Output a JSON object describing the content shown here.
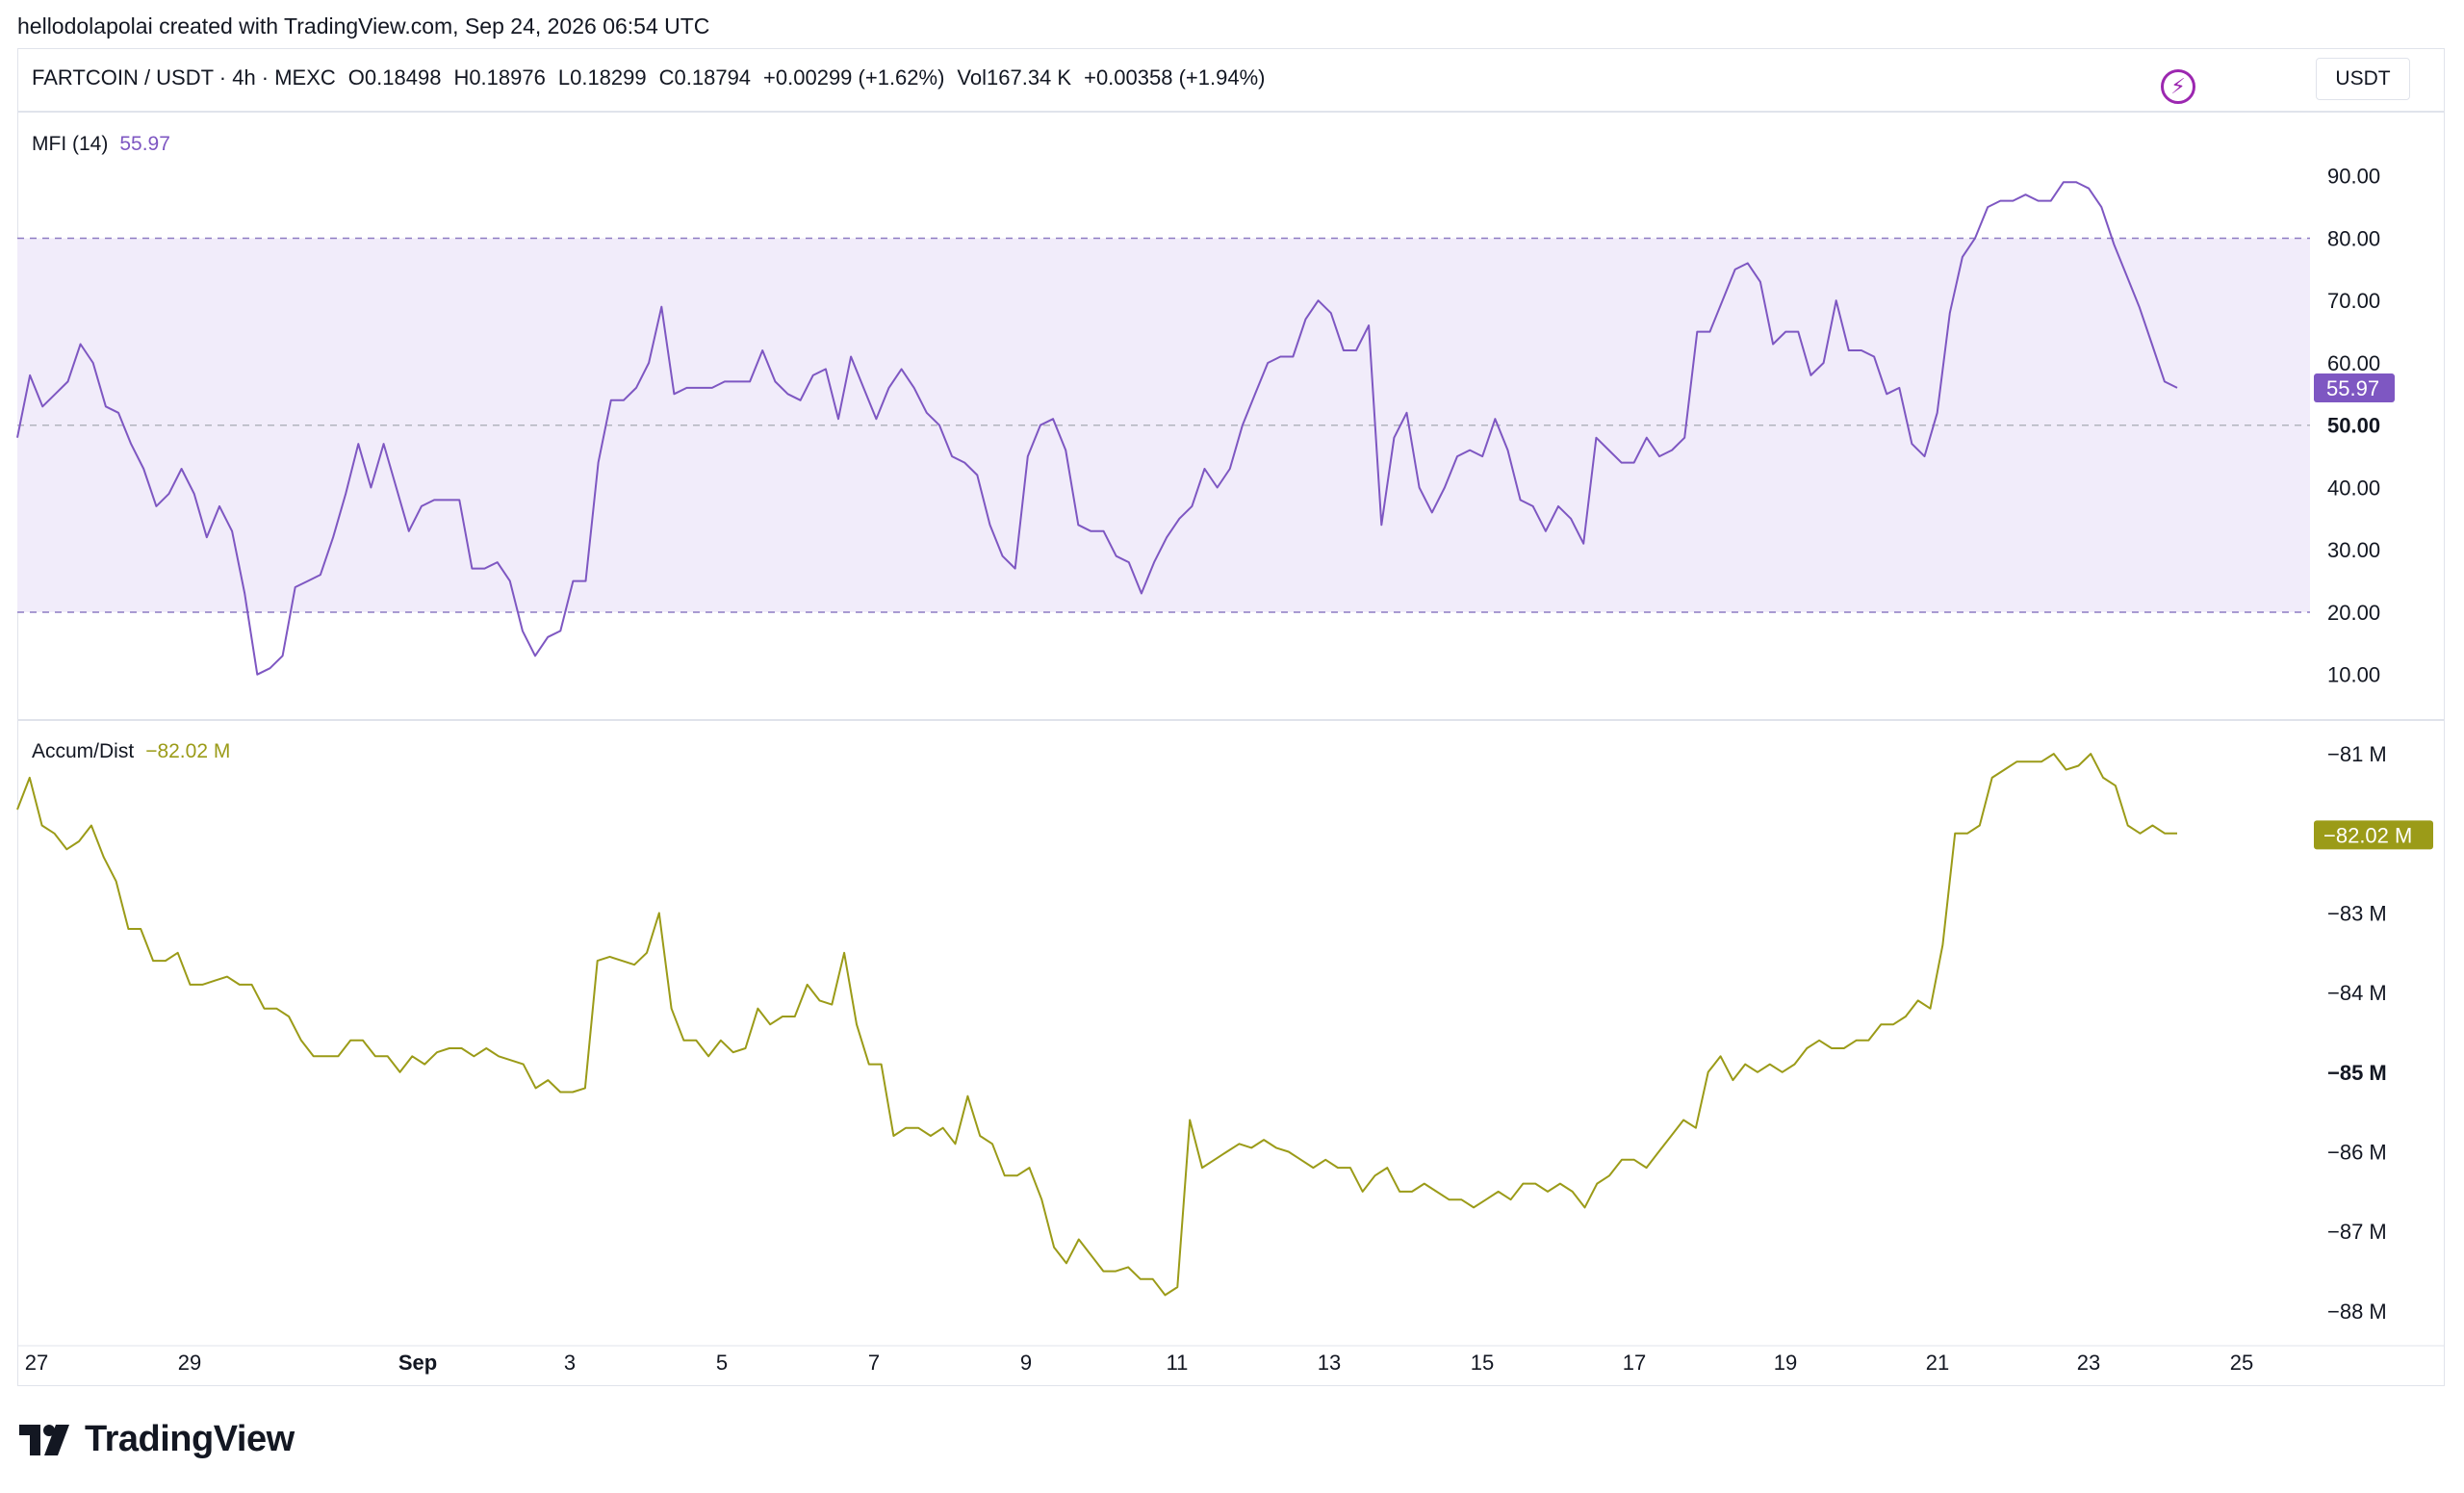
{
  "credit": "hellodolapolai created with TradingView.com, Sep 24, 2026 06:54 UTC",
  "header": {
    "symbol": "FARTCOIN / USDT · 4h · MEXC",
    "open": "O0.18498",
    "high": "H0.18976",
    "low": "L0.18299",
    "close": "C0.18794",
    "change": "+0.00299 (+1.62%)",
    "volume": "Vol167.34 K",
    "vol_change": "+0.00358 (+1.94%)"
  },
  "currency_button": "USDT",
  "icons": {
    "lightning": "lightning-icon",
    "logo": "tradingview-logo-icon"
  },
  "colors": {
    "mfi": "#7e57c2",
    "ad": "#9b9b18",
    "band_fill": "#f1ecfa",
    "grid": "#e0e3eb"
  },
  "logo_text": "TradingView",
  "chart_data": [
    {
      "type": "line",
      "name": "MFI (14)",
      "current_label": "55.97",
      "color": "#7e57c2",
      "ylim": [
        3,
        100
      ],
      "yticks": [
        "90.00",
        "80.00",
        "70.00",
        "60.00",
        "50.00",
        "40.00",
        "30.00",
        "20.00",
        "10.00"
      ],
      "ytick_values": [
        90,
        80,
        70,
        60,
        50,
        40,
        30,
        20,
        10
      ],
      "bold_tick": "50.00",
      "bands": {
        "upper": 80,
        "middle": 50,
        "lower": 20
      },
      "last_value": 55.97,
      "values": [
        48,
        58,
        53,
        55,
        57,
        63,
        60,
        53,
        52,
        47,
        43,
        37,
        39,
        43,
        39,
        32,
        37,
        33,
        23,
        10,
        11,
        13,
        24,
        25,
        26,
        32,
        39,
        47,
        40,
        47,
        40,
        33,
        37,
        38,
        38,
        38,
        27,
        27,
        28,
        25,
        17,
        13,
        16,
        17,
        25,
        25,
        44,
        54,
        54,
        56,
        60,
        69,
        55,
        56,
        56,
        56,
        57,
        57,
        57,
        62,
        57,
        55,
        54,
        58,
        59,
        51,
        61,
        56,
        51,
        56,
        59,
        56,
        52,
        50,
        45,
        44,
        42,
        34,
        29,
        27,
        45,
        50,
        51,
        46,
        34,
        33,
        33,
        29,
        28,
        23,
        28,
        32,
        35,
        37,
        43,
        40,
        43,
        50,
        55,
        60,
        61,
        61,
        67,
        70,
        68,
        62,
        62,
        66,
        34,
        48,
        52,
        40,
        36,
        40,
        45,
        46,
        45,
        51,
        46,
        38,
        37,
        33,
        37,
        35,
        31,
        48,
        46,
        44,
        44,
        48,
        45,
        46,
        48,
        65,
        65,
        70,
        75,
        76,
        73,
        63,
        65,
        65,
        58,
        60,
        70,
        62,
        62,
        61,
        55,
        56,
        47,
        45,
        52,
        68,
        77,
        80,
        85,
        86,
        86,
        87,
        86,
        86,
        89,
        89,
        88,
        85,
        79,
        74,
        69,
        63,
        57,
        56
      ],
      "x_range": [
        26.833,
        24.167
      ]
    },
    {
      "type": "line",
      "name": "Accum/Dist",
      "current_label": "−82.02 M",
      "color": "#9b9b18",
      "ylim": [
        -88.4,
        -80.6
      ],
      "yticks": [
        "−81 M",
        "−83 M",
        "−84 M",
        "−85 M",
        "−86 M",
        "−87 M",
        "−88 M"
      ],
      "ytick_values": [
        -81,
        -83,
        -84,
        -85,
        -86,
        -87,
        -88
      ],
      "bold_tick": "−85 M",
      "last_value": -82.02,
      "values": [
        -81.7,
        -81.3,
        -81.9,
        -82.0,
        -82.2,
        -82.1,
        -81.9,
        -82.3,
        -82.6,
        -83.2,
        -83.2,
        -83.6,
        -83.6,
        -83.5,
        -83.9,
        -83.9,
        -83.85,
        -83.8,
        -83.9,
        -83.9,
        -84.2,
        -84.2,
        -84.3,
        -84.6,
        -84.8,
        -84.8,
        -84.8,
        -84.6,
        -84.6,
        -84.8,
        -84.8,
        -85.0,
        -84.8,
        -84.9,
        -84.75,
        -84.7,
        -84.7,
        -84.8,
        -84.7,
        -84.8,
        -84.85,
        -84.9,
        -85.2,
        -85.1,
        -85.25,
        -85.25,
        -85.2,
        -83.6,
        -83.55,
        -83.6,
        -83.65,
        -83.5,
        -83.0,
        -84.2,
        -84.6,
        -84.6,
        -84.8,
        -84.6,
        -84.75,
        -84.7,
        -84.2,
        -84.4,
        -84.3,
        -84.3,
        -83.9,
        -84.1,
        -84.15,
        -83.5,
        -84.4,
        -84.9,
        -84.9,
        -85.8,
        -85.7,
        -85.7,
        -85.8,
        -85.7,
        -85.9,
        -85.3,
        -85.8,
        -85.9,
        -86.3,
        -86.3,
        -86.2,
        -86.6,
        -87.2,
        -87.4,
        -87.1,
        -87.3,
        -87.5,
        -87.5,
        -87.45,
        -87.6,
        -87.6,
        -87.8,
        -87.7,
        -85.6,
        -86.2,
        -86.1,
        -86.0,
        -85.9,
        -85.95,
        -85.85,
        -85.95,
        -86.0,
        -86.1,
        -86.2,
        -86.1,
        -86.2,
        -86.2,
        -86.5,
        -86.3,
        -86.2,
        -86.5,
        -86.5,
        -86.4,
        -86.5,
        -86.6,
        -86.6,
        -86.7,
        -86.6,
        -86.5,
        -86.6,
        -86.4,
        -86.4,
        -86.5,
        -86.4,
        -86.5,
        -86.7,
        -86.4,
        -86.3,
        -86.1,
        -86.1,
        -86.2,
        -86.0,
        -85.8,
        -85.6,
        -85.7,
        -85.0,
        -84.8,
        -85.1,
        -84.9,
        -85.0,
        -84.9,
        -85.0,
        -84.9,
        -84.7,
        -84.6,
        -84.7,
        -84.7,
        -84.6,
        -84.6,
        -84.4,
        -84.4,
        -84.3,
        -84.1,
        -84.2,
        -83.4,
        -82.0,
        -82.0,
        -81.9,
        -81.3,
        -81.2,
        -81.1,
        -81.1,
        -81.1,
        -81.0,
        -81.2,
        -81.15,
        -81.0,
        -81.3,
        -81.4,
        -81.9,
        -82.0,
        -81.9,
        -82.0,
        -82.0
      ]
    }
  ],
  "x_axis": {
    "labels": [
      "27",
      "29",
      "Sep",
      "3",
      "5",
      "7",
      "9",
      "11",
      "13",
      "15",
      "17",
      "19",
      "21",
      "23",
      "25"
    ],
    "bold": [
      "Sep"
    ]
  }
}
